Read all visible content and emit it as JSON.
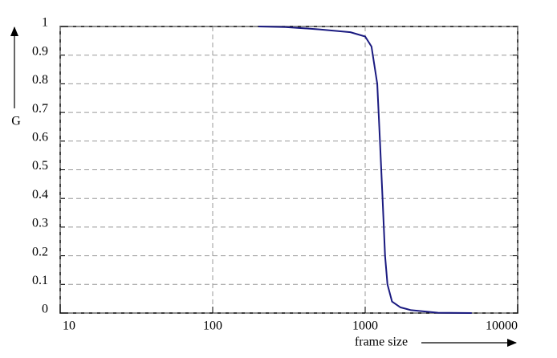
{
  "chart_data": {
    "type": "line",
    "x_label": "frame size",
    "y_label": "G",
    "x_scale": "log",
    "grid": true,
    "xlim": [
      10,
      10000
    ],
    "xticks": [
      10,
      100,
      1000,
      10000
    ],
    "ylim": [
      0,
      1
    ],
    "yticks": [
      0,
      0.1,
      0.2,
      0.3,
      0.4,
      0.5,
      0.6,
      0.7,
      0.8,
      0.9,
      1
    ],
    "x": [
      200,
      300,
      500,
      800,
      1000,
      1100,
      1200,
      1250,
      1300,
      1350,
      1400,
      1500,
      1700,
      2000,
      3000,
      5000
    ],
    "series": [
      {
        "color": "#1a1a80",
        "values": [
          1,
          0.998,
          0.99,
          0.98,
          0.965,
          0.93,
          0.8,
          0.6,
          0.4,
          0.2,
          0.1,
          0.04,
          0.02,
          0.01,
          0.001,
          0
        ]
      }
    ]
  }
}
